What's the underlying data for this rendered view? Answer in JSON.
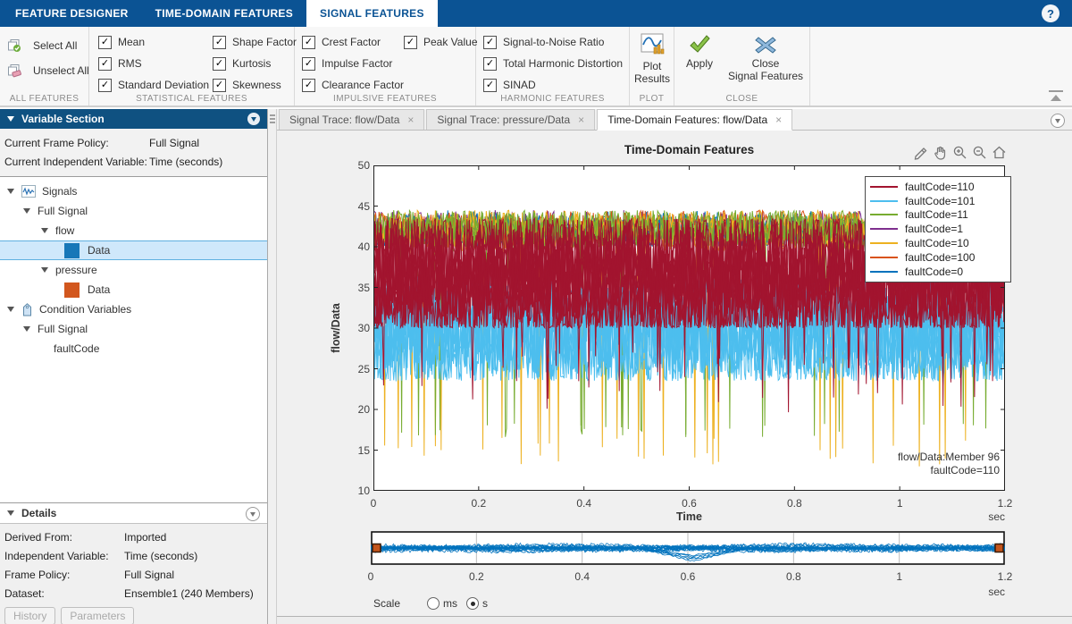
{
  "ui": {
    "check_glyph": "✓",
    "help_glyph": "?"
  },
  "colors": {
    "appbar": "#0b5394",
    "panel_header": "#0f5181",
    "selected_row": "#cfe8fb"
  },
  "app_tabs": {
    "tabs": [
      {
        "label": "FEATURE DESIGNER",
        "active": false
      },
      {
        "label": "TIME-DOMAIN FEATURES",
        "active": false
      },
      {
        "label": "SIGNAL FEATURES",
        "active": true
      }
    ]
  },
  "toolbar": {
    "all_features": {
      "label": "ALL FEATURES",
      "select_all": "Select All",
      "unselect_all": "Unselect All"
    },
    "statistical": {
      "label": "STATISTICAL FEATURES",
      "col1": [
        {
          "label": "Mean",
          "checked": true
        },
        {
          "label": "RMS",
          "checked": true
        },
        {
          "label": "Standard Deviation",
          "checked": true
        }
      ],
      "col2": [
        {
          "label": "Shape Factor",
          "checked": true
        },
        {
          "label": "Kurtosis",
          "checked": true
        },
        {
          "label": "Skewness",
          "checked": true
        }
      ]
    },
    "impulsive": {
      "label": "IMPULSIVE FEATURES",
      "col1": [
        {
          "label": "Crest Factor",
          "checked": true
        },
        {
          "label": "Impulse Factor",
          "checked": true
        },
        {
          "label": "Clearance Factor",
          "checked": true
        }
      ],
      "col2": [
        {
          "label": "Peak Value",
          "checked": true
        }
      ]
    },
    "harmonic": {
      "label": "HARMONIC FEATURES",
      "col1": [
        {
          "label": "Signal-to-Noise Ratio",
          "checked": true
        },
        {
          "label": "Total Harmonic Distortion",
          "checked": true
        },
        {
          "label": "SINAD",
          "checked": true
        }
      ]
    },
    "plot": {
      "label": "PLOT",
      "button_line1": "Plot",
      "button_line2": "Results"
    },
    "close": {
      "label": "CLOSE",
      "apply": "Apply",
      "close_line1": "Close",
      "close_line2": "Signal Features"
    }
  },
  "variable_section": {
    "title": "Variable Section",
    "rows": [
      {
        "label": "Current Frame Policy:",
        "value": "Full Signal"
      },
      {
        "label": "Current Independent Variable:",
        "value": "Time (seconds)"
      }
    ],
    "tree": [
      {
        "label": "Signals"
      },
      {
        "label": "Full Signal"
      },
      {
        "label": "flow"
      },
      {
        "label": "Data",
        "selected": true,
        "swatch": "#1777b8"
      },
      {
        "label": "pressure"
      },
      {
        "label": "Data",
        "swatch": "#d2571e"
      },
      {
        "label": "Condition Variables"
      },
      {
        "label": "Full Signal"
      },
      {
        "label": "faultCode"
      }
    ]
  },
  "details": {
    "title": "Details",
    "rows": [
      {
        "label": "Derived From:",
        "value": "Imported"
      },
      {
        "label": "Independent Variable:",
        "value": "Time (seconds)"
      },
      {
        "label": "Frame Policy:",
        "value": "Full Signal"
      },
      {
        "label": "Dataset:",
        "value": "Ensemble1 (240 Members)"
      }
    ],
    "buttons": [
      {
        "label": "History"
      },
      {
        "label": "Parameters"
      }
    ]
  },
  "doc_tabs": {
    "close_glyph": "×",
    "tabs": [
      {
        "label": "Signal Trace: flow/Data",
        "active": false
      },
      {
        "label": "Signal Trace: pressure/Data",
        "active": false
      },
      {
        "label": "Time-Domain Features: flow/Data",
        "active": true
      }
    ]
  },
  "chart_data": {
    "type": "line",
    "title": "Time-Domain Features",
    "xlabel": "Time",
    "xunit": "sec",
    "ylabel": "flow/Data",
    "xlim": [
      0,
      1.2
    ],
    "ylim": [
      10,
      50
    ],
    "xticks": [
      0,
      0.2,
      0.4,
      0.6,
      0.8,
      1,
      1.2
    ],
    "xtick_labels": [
      "0",
      "0.2",
      "0.4",
      "0.6",
      "0.8",
      "1",
      "1.2"
    ],
    "yticks": [
      10,
      15,
      20,
      25,
      30,
      35,
      40,
      45,
      50
    ],
    "legend_position": "northeast",
    "grid": false,
    "annotation": [
      "flow/Data:Member 96",
      "faultCode=110"
    ],
    "series": [
      {
        "name": "faultCode=110",
        "color": "#A2142F",
        "band": [
          30,
          43.5
        ],
        "spikes_down_to": 19,
        "spike_span": 8,
        "spike_rate": 0.006,
        "lines": 11
      },
      {
        "name": "faultCode=101",
        "color": "#4DBEEE",
        "band": [
          23.5,
          36.5
        ],
        "spikes_down_to": 23,
        "spike_span": 3,
        "spike_rate": 0.008,
        "lines": 8
      },
      {
        "name": "faultCode=11",
        "color": "#77AC30",
        "band": [
          39.5,
          44.5
        ],
        "spikes_down_to": 16.5,
        "spike_span": 2,
        "spike_rate": 0.02,
        "lines": 3
      },
      {
        "name": "faultCode=1",
        "color": "#7E2F8E",
        "band": [
          40,
          44.5
        ],
        "spikes_down_to": 0,
        "spike_span": 0,
        "spike_rate": 0,
        "lines": 2
      },
      {
        "name": "faultCode=10",
        "color": "#EDB120",
        "band": [
          39.5,
          44.5
        ],
        "spikes_down_to": 13,
        "spike_span": 3.5,
        "spike_rate": 0.02,
        "lines": 3
      },
      {
        "name": "faultCode=100",
        "color": "#D95319",
        "band": [
          40,
          44.5
        ],
        "spikes_down_to": 0,
        "spike_span": 0,
        "spike_rate": 0,
        "lines": 2
      },
      {
        "name": "faultCode=0",
        "color": "#0072BD",
        "band": [
          40,
          44.5
        ],
        "spikes_down_to": 0,
        "spike_span": 0,
        "spike_rate": 0,
        "lines": 2
      }
    ],
    "draw_order": [
      3,
      6,
      5,
      4,
      2,
      1,
      0
    ]
  },
  "panner": {
    "color": "#0072BD",
    "xticks": [
      0,
      0.2,
      0.4,
      0.6,
      0.8,
      1,
      1.2
    ],
    "xtick_labels": [
      "0",
      "0.2",
      "0.4",
      "0.6",
      "0.8",
      "1",
      "1.2"
    ],
    "unit": "sec",
    "dip_center": 0.61,
    "scale": {
      "label": "Scale",
      "options": [
        {
          "label": "ms",
          "selected": false
        },
        {
          "label": "s",
          "selected": true
        }
      ]
    }
  }
}
